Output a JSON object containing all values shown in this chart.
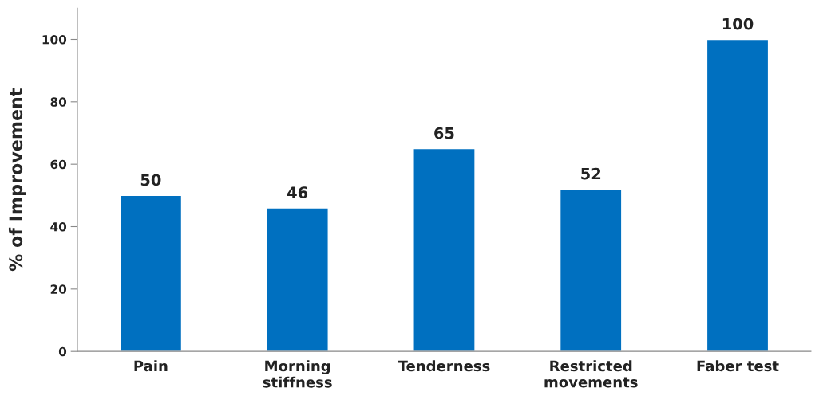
{
  "chart_data": {
    "type": "bar",
    "ylabel": "% of Improvement",
    "categories": [
      "Pain",
      "Morning\nstiffness",
      "Tenderness",
      "Restricted\nmovements",
      "Faber test"
    ],
    "values": [
      50,
      46,
      65,
      52,
      100
    ],
    "color": "#0070c0",
    "ylim": [
      0,
      110
    ],
    "yticks": [
      0,
      20,
      40,
      60,
      80,
      100
    ],
    "grid": false,
    "data_labels": true
  }
}
